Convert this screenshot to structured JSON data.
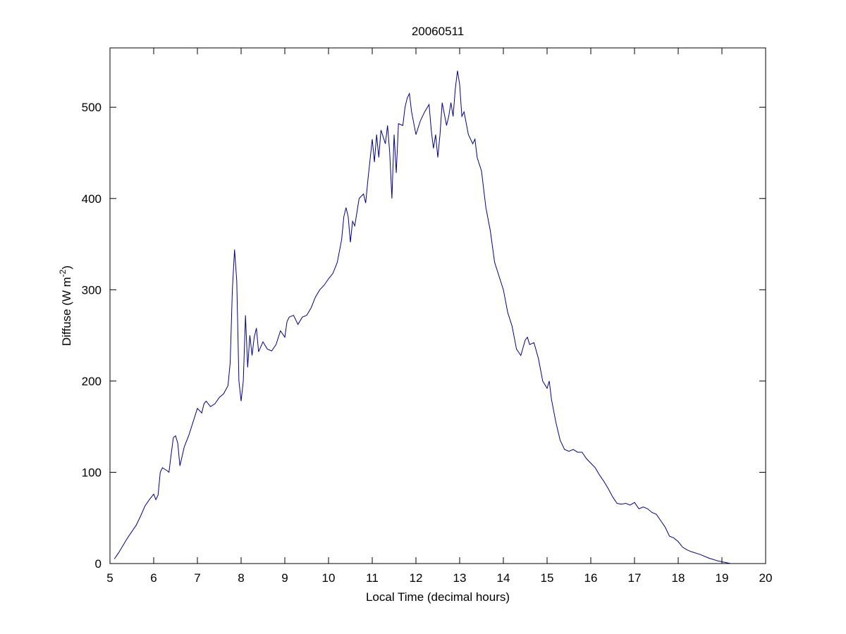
{
  "chart_data": {
    "type": "line",
    "title": "20060511",
    "xlabel": "Local Time (decimal hours)",
    "ylabel": [
      "Diffuse (W m",
      "-2",
      ")"
    ],
    "color": "#00008b",
    "xlim": [
      5,
      20
    ],
    "xticks": [
      5,
      6,
      7,
      8,
      9,
      10,
      11,
      12,
      13,
      14,
      15,
      16,
      17,
      18,
      19,
      20
    ],
    "ylim": [
      0,
      565
    ],
    "yticks": [
      0,
      100,
      200,
      300,
      400,
      500
    ],
    "grid": false,
    "x": [
      5.1,
      5.2,
      5.3,
      5.4,
      5.5,
      5.6,
      5.7,
      5.8,
      5.9,
      6.0,
      6.05,
      6.1,
      6.15,
      6.2,
      6.3,
      6.35,
      6.4,
      6.45,
      6.5,
      6.55,
      6.6,
      6.7,
      6.8,
      6.9,
      7.0,
      7.1,
      7.15,
      7.2,
      7.3,
      7.4,
      7.5,
      7.6,
      7.7,
      7.75,
      7.8,
      7.85,
      7.9,
      7.95,
      8.0,
      8.05,
      8.1,
      8.15,
      8.2,
      8.25,
      8.3,
      8.35,
      8.4,
      8.5,
      8.6,
      8.7,
      8.8,
      8.9,
      9.0,
      9.05,
      9.1,
      9.2,
      9.3,
      9.4,
      9.5,
      9.6,
      9.7,
      9.8,
      9.9,
      10.0,
      10.1,
      10.2,
      10.3,
      10.35,
      10.4,
      10.45,
      10.5,
      10.55,
      10.6,
      10.7,
      10.8,
      10.85,
      10.9,
      11.0,
      11.05,
      11.1,
      11.15,
      11.2,
      11.3,
      11.35,
      11.4,
      11.45,
      11.5,
      11.55,
      11.6,
      11.7,
      11.75,
      11.8,
      11.85,
      11.9,
      12.0,
      12.1,
      12.2,
      12.3,
      12.35,
      12.4,
      12.45,
      12.5,
      12.55,
      12.6,
      12.7,
      12.75,
      12.8,
      12.85,
      12.9,
      12.95,
      13.0,
      13.05,
      13.1,
      13.2,
      13.3,
      13.35,
      13.4,
      13.5,
      13.6,
      13.7,
      13.8,
      13.9,
      14.0,
      14.1,
      14.2,
      14.3,
      14.4,
      14.5,
      14.55,
      14.6,
      14.7,
      14.8,
      14.9,
      15.0,
      15.05,
      15.1,
      15.2,
      15.3,
      15.4,
      15.5,
      15.6,
      15.7,
      15.8,
      15.9,
      16.0,
      16.1,
      16.2,
      16.3,
      16.4,
      16.5,
      16.6,
      16.7,
      16.8,
      16.9,
      17.0,
      17.1,
      17.2,
      17.3,
      17.4,
      17.5,
      17.6,
      17.7,
      17.8,
      17.9,
      18.0,
      18.1,
      18.2,
      18.3,
      18.5,
      18.7,
      18.9,
      19.1,
      19.2
    ],
    "values": [
      5,
      12,
      20,
      28,
      35,
      42,
      52,
      63,
      70,
      76,
      70,
      75,
      100,
      105,
      102,
      100,
      120,
      138,
      140,
      132,
      107,
      128,
      140,
      155,
      170,
      165,
      175,
      178,
      172,
      175,
      182,
      186,
      195,
      220,
      300,
      344,
      310,
      200,
      178,
      200,
      272,
      215,
      250,
      228,
      248,
      258,
      232,
      243,
      235,
      233,
      240,
      255,
      248,
      265,
      270,
      272,
      262,
      270,
      272,
      280,
      292,
      300,
      305,
      312,
      318,
      330,
      355,
      380,
      390,
      380,
      352,
      375,
      370,
      400,
      405,
      395,
      420,
      465,
      440,
      470,
      445,
      475,
      460,
      480,
      450,
      400,
      470,
      428,
      482,
      480,
      500,
      510,
      515,
      495,
      470,
      485,
      495,
      503,
      475,
      455,
      470,
      445,
      470,
      505,
      480,
      490,
      505,
      490,
      520,
      540,
      525,
      490,
      495,
      470,
      460,
      465,
      445,
      430,
      390,
      365,
      330,
      315,
      300,
      275,
      260,
      235,
      228,
      245,
      248,
      240,
      242,
      225,
      200,
      192,
      200,
      180,
      155,
      135,
      125,
      123,
      125,
      122,
      122,
      115,
      110,
      105,
      97,
      90,
      82,
      73,
      66,
      65,
      66,
      64,
      67,
      60,
      62,
      60,
      56,
      54,
      47,
      40,
      30,
      28,
      24,
      18,
      15,
      13,
      10,
      6,
      3,
      1,
      0
    ]
  }
}
